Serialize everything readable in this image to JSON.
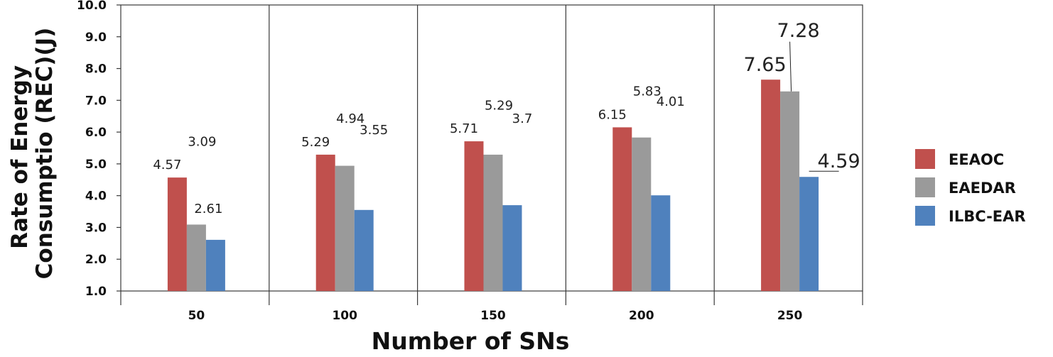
{
  "chart_data": {
    "type": "bar",
    "title": "",
    "xlabel": "Number of SNs",
    "ylabel_lines": [
      "Rate of Energy",
      "Consumptio (REC)(J)"
    ],
    "categories": [
      "50",
      "100",
      "150",
      "200",
      "250"
    ],
    "ylim": [
      1.0,
      10.0
    ],
    "yticks": [
      "1.0",
      "2.0",
      "3.0",
      "4.0",
      "5.0",
      "6.0",
      "7.0",
      "8.0",
      "9.0",
      "10.0"
    ],
    "grid": "vertical lines between categories",
    "legend_position": "right",
    "series": [
      {
        "name": "EEAOC",
        "color": "#c0504d",
        "values": [
          4.57,
          5.29,
          5.71,
          6.15,
          7.65
        ]
      },
      {
        "name": "EAEDAR",
        "color": "#9a9a9a",
        "values": [
          3.09,
          4.94,
          5.29,
          5.83,
          7.28
        ]
      },
      {
        "name": "ILBC-EAR",
        "color": "#4f81bd",
        "values": [
          2.61,
          3.55,
          3.7,
          4.01,
          4.59
        ]
      }
    ],
    "data_labels": [
      [
        "4.57",
        "5.29",
        "5.71",
        "6.15",
        "7.65"
      ],
      [
        "3.09",
        "4.94",
        "5.29",
        "5.83",
        "7.28"
      ],
      [
        "2.61",
        "3.55",
        "3.7",
        "4.01",
        "4.59"
      ]
    ]
  }
}
